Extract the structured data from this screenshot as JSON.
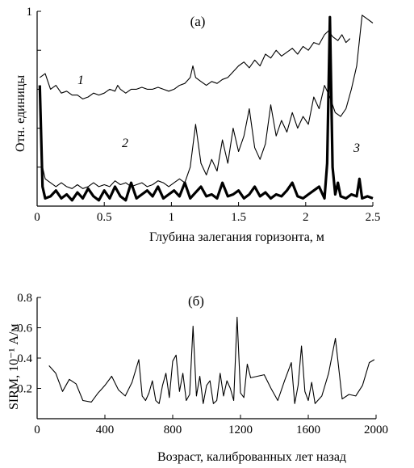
{
  "chart_data": [
    {
      "type": "line",
      "panel_label": "(а)",
      "xlabel": "Глубина залегания горизонта, м",
      "ylabel": "Отн. единицы",
      "xlim": [
        0,
        2.5
      ],
      "ylim": [
        0,
        1
      ],
      "x_ticks": [
        0,
        0.5,
        1,
        1.5,
        2,
        2.5
      ],
      "x_tick_labels": [
        "0",
        "0.5",
        "1",
        "1.5",
        "2",
        "2.5"
      ],
      "y_ticks": [
        1
      ],
      "y_tick_labels": [
        "1"
      ],
      "series": [
        {
          "name": "1",
          "color": "#000000",
          "stroke": "thin",
          "x": [
            0.02,
            0.06,
            0.1,
            0.14,
            0.18,
            0.22,
            0.26,
            0.3,
            0.34,
            0.38,
            0.42,
            0.46,
            0.5,
            0.54,
            0.58,
            0.6,
            0.62,
            0.66,
            0.7,
            0.74,
            0.78,
            0.82,
            0.86,
            0.9,
            0.94,
            0.98,
            1.02,
            1.06,
            1.1,
            1.14,
            1.16,
            1.18,
            1.22,
            1.26,
            1.3,
            1.34,
            1.38,
            1.42,
            1.46,
            1.5,
            1.54,
            1.58,
            1.62,
            1.66,
            1.7,
            1.74,
            1.78,
            1.82,
            1.86,
            1.9,
            1.94,
            1.98,
            2.02,
            2.06,
            2.1,
            2.14,
            2.17,
            2.2,
            2.24,
            2.27,
            2.3,
            2.33
          ],
          "y": [
            0.66,
            0.68,
            0.6,
            0.62,
            0.58,
            0.59,
            0.57,
            0.57,
            0.55,
            0.56,
            0.58,
            0.57,
            0.58,
            0.6,
            0.59,
            0.62,
            0.6,
            0.58,
            0.6,
            0.6,
            0.61,
            0.6,
            0.6,
            0.61,
            0.6,
            0.59,
            0.6,
            0.62,
            0.63,
            0.66,
            0.72,
            0.66,
            0.64,
            0.62,
            0.64,
            0.63,
            0.65,
            0.66,
            0.69,
            0.72,
            0.74,
            0.71,
            0.75,
            0.72,
            0.78,
            0.76,
            0.8,
            0.77,
            0.79,
            0.81,
            0.78,
            0.82,
            0.8,
            0.84,
            0.83,
            0.88,
            0.9,
            0.87,
            0.85,
            0.88,
            0.84,
            0.86
          ]
        },
        {
          "name": "2",
          "color": "#000000",
          "stroke": "thin",
          "x": [
            0.02,
            0.04,
            0.06,
            0.1,
            0.14,
            0.18,
            0.22,
            0.26,
            0.3,
            0.34,
            0.38,
            0.42,
            0.46,
            0.5,
            0.54,
            0.58,
            0.62,
            0.66,
            0.7,
            0.74,
            0.78,
            0.82,
            0.86,
            0.9,
            0.94,
            0.98,
            1.02,
            1.06,
            1.1,
            1.14,
            1.18,
            1.22,
            1.26,
            1.3,
            1.34,
            1.38,
            1.42,
            1.46,
            1.5,
            1.54,
            1.58,
            1.62,
            1.66,
            1.7,
            1.74,
            1.78,
            1.82,
            1.86,
            1.9,
            1.94,
            1.98,
            2.02,
            2.06,
            2.1,
            2.14,
            2.18,
            2.22,
            2.26,
            2.3,
            2.34,
            2.38,
            2.42,
            2.46,
            2.5
          ],
          "y": [
            0.62,
            0.2,
            0.14,
            0.12,
            0.1,
            0.12,
            0.1,
            0.09,
            0.11,
            0.09,
            0.1,
            0.12,
            0.1,
            0.11,
            0.1,
            0.13,
            0.11,
            0.12,
            0.1,
            0.11,
            0.12,
            0.1,
            0.11,
            0.13,
            0.12,
            0.1,
            0.12,
            0.14,
            0.12,
            0.2,
            0.42,
            0.22,
            0.16,
            0.24,
            0.18,
            0.34,
            0.22,
            0.4,
            0.28,
            0.36,
            0.5,
            0.3,
            0.24,
            0.32,
            0.52,
            0.36,
            0.44,
            0.38,
            0.48,
            0.4,
            0.46,
            0.42,
            0.56,
            0.5,
            0.62,
            0.56,
            0.48,
            0.46,
            0.5,
            0.6,
            0.72,
            0.98,
            0.96,
            0.94
          ]
        },
        {
          "name": "3",
          "color": "#000000",
          "stroke": "bold",
          "x": [
            0.02,
            0.04,
            0.06,
            0.1,
            0.14,
            0.18,
            0.22,
            0.26,
            0.3,
            0.34,
            0.38,
            0.42,
            0.46,
            0.5,
            0.54,
            0.58,
            0.62,
            0.66,
            0.7,
            0.74,
            0.78,
            0.82,
            0.86,
            0.9,
            0.94,
            0.98,
            1.02,
            1.06,
            1.1,
            1.14,
            1.18,
            1.22,
            1.26,
            1.3,
            1.34,
            1.38,
            1.42,
            1.46,
            1.5,
            1.54,
            1.58,
            1.62,
            1.66,
            1.7,
            1.74,
            1.78,
            1.82,
            1.86,
            1.9,
            1.94,
            1.98,
            2.02,
            2.06,
            2.1,
            2.14,
            2.16,
            2.18,
            2.2,
            2.22,
            2.24,
            2.26,
            2.3,
            2.34,
            2.38,
            2.4,
            2.42,
            2.46,
            2.5
          ],
          "y": [
            0.62,
            0.1,
            0.04,
            0.05,
            0.08,
            0.04,
            0.06,
            0.03,
            0.07,
            0.04,
            0.09,
            0.05,
            0.03,
            0.08,
            0.04,
            0.1,
            0.05,
            0.03,
            0.12,
            0.04,
            0.06,
            0.08,
            0.05,
            0.1,
            0.04,
            0.06,
            0.08,
            0.05,
            0.12,
            0.04,
            0.07,
            0.1,
            0.05,
            0.06,
            0.04,
            0.12,
            0.05,
            0.06,
            0.08,
            0.04,
            0.06,
            0.1,
            0.05,
            0.07,
            0.04,
            0.06,
            0.05,
            0.08,
            0.12,
            0.05,
            0.04,
            0.06,
            0.08,
            0.1,
            0.04,
            0.22,
            0.97,
            0.2,
            0.06,
            0.12,
            0.05,
            0.04,
            0.06,
            0.05,
            0.14,
            0.04,
            0.05,
            0.04
          ]
        }
      ]
    },
    {
      "type": "line",
      "panel_label": "(б)",
      "xlabel": "Возраст, калиброванных лет назад",
      "ylabel": "SIRM, 10⁻¹ А/м",
      "xlim": [
        0,
        2000
      ],
      "ylim": [
        0,
        0.8
      ],
      "x_ticks": [
        0,
        400,
        800,
        1200,
        1600,
        2000
      ],
      "x_tick_labels": [
        "0",
        "400",
        "800",
        "1200",
        "1600",
        "2000"
      ],
      "y_ticks": [
        0.2,
        0.4,
        0.6,
        0.8
      ],
      "y_tick_labels": [
        "0.2",
        "0.4",
        "0.6",
        "0.8"
      ],
      "series": [
        {
          "color": "#000000",
          "x": [
            70,
            110,
            150,
            190,
            230,
            270,
            320,
            360,
            400,
            440,
            480,
            520,
            560,
            600,
            620,
            640,
            660,
            680,
            700,
            720,
            740,
            760,
            780,
            800,
            820,
            840,
            860,
            880,
            900,
            920,
            940,
            960,
            980,
            1000,
            1020,
            1040,
            1060,
            1080,
            1100,
            1120,
            1140,
            1160,
            1180,
            1200,
            1220,
            1240,
            1260,
            1300,
            1340,
            1380,
            1420,
            1460,
            1500,
            1520,
            1540,
            1560,
            1580,
            1600,
            1620,
            1640,
            1680,
            1720,
            1760,
            1800,
            1840,
            1880,
            1920,
            1960,
            1990
          ],
          "y": [
            0.35,
            0.3,
            0.18,
            0.26,
            0.23,
            0.12,
            0.11,
            0.17,
            0.22,
            0.28,
            0.19,
            0.15,
            0.24,
            0.39,
            0.15,
            0.12,
            0.17,
            0.25,
            0.12,
            0.1,
            0.22,
            0.3,
            0.14,
            0.38,
            0.42,
            0.18,
            0.3,
            0.12,
            0.16,
            0.61,
            0.15,
            0.28,
            0.1,
            0.22,
            0.25,
            0.1,
            0.12,
            0.3,
            0.15,
            0.25,
            0.2,
            0.12,
            0.67,
            0.17,
            0.14,
            0.36,
            0.27,
            0.28,
            0.29,
            0.2,
            0.12,
            0.25,
            0.37,
            0.1,
            0.22,
            0.48,
            0.18,
            0.12,
            0.24,
            0.1,
            0.15,
            0.3,
            0.53,
            0.13,
            0.16,
            0.15,
            0.22,
            0.37,
            0.39
          ]
        }
      ]
    }
  ]
}
